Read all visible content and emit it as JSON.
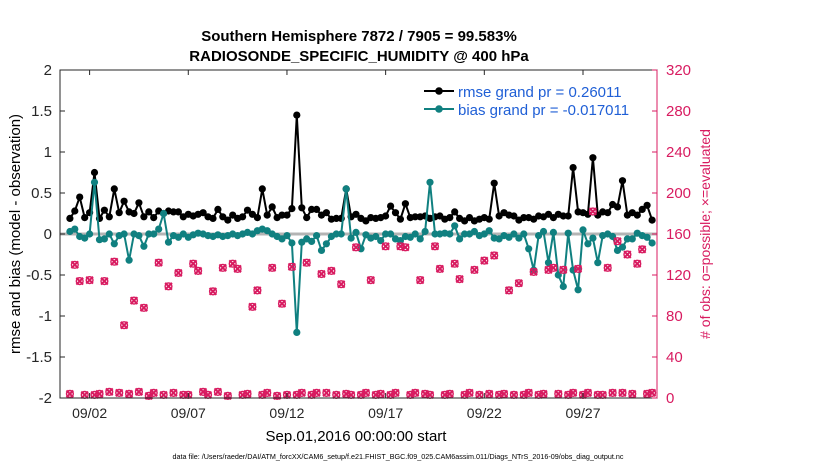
{
  "chart_data": {
    "type": "line",
    "title": "Southern Hemisphere 7872 / 7905 = 99.583%",
    "subtitle": "RADIOSONDE_SPECIFIC_HUMIDITY @ 400 hPa",
    "xlabel": "Sep.01,2016 00:00:00 start",
    "ylabel_left": "rmse and bias (model - observation)",
    "ylabel_right": "# of obs: o=possible; ×=evaluated",
    "footnote": "data file: /Users/raeder/DAI/ATM_forcXX/CAM6_setup/f.e21.FHIST_BGC.f09_025.CAM6assim.011/Diags_NTrS_2016-09/obs_diag_output.nc",
    "xlim": [
      0.5,
      30.75
    ],
    "ylim_left": [
      -2,
      2
    ],
    "ylim_right": [
      0,
      320
    ],
    "x_ticks": [
      2,
      7,
      12,
      17,
      22,
      27
    ],
    "x_tick_labels": [
      "09/02",
      "09/07",
      "09/12",
      "09/17",
      "09/22",
      "09/27"
    ],
    "y_left_ticks": [
      -2,
      -1.5,
      -1,
      -0.5,
      0,
      0.5,
      1,
      1.5,
      2
    ],
    "y_left_tick_labels": [
      "-2",
      "-1.5",
      "-1",
      "-0.5",
      "0",
      "0.5",
      "1",
      "1.5",
      "2"
    ],
    "y_right_ticks": [
      0,
      40,
      80,
      120,
      160,
      200,
      240,
      280,
      320
    ],
    "y_right_tick_labels": [
      "0",
      "40",
      "80",
      "120",
      "160",
      "200",
      "240",
      "280",
      "320"
    ],
    "colors": {
      "rmse": "#000000",
      "bias": "#108080",
      "obs": "#d81b60",
      "zero_line": "#b4b4b4",
      "legend_text": "#1f5fd6"
    },
    "legend": {
      "position": "top-right",
      "rmse_label": "rmse grand pr = 0.26011",
      "bias_label": "bias grand pr = -0.017011"
    },
    "x": [
      1.0,
      1.25,
      1.5,
      1.75,
      2.0,
      2.25,
      2.5,
      2.75,
      3.0,
      3.25,
      3.5,
      3.75,
      4.0,
      4.25,
      4.5,
      4.75,
      5.0,
      5.25,
      5.5,
      5.75,
      6.0,
      6.25,
      6.5,
      6.75,
      7.0,
      7.25,
      7.5,
      7.75,
      8.0,
      8.25,
      8.5,
      8.75,
      9.0,
      9.25,
      9.5,
      9.75,
      10.0,
      10.25,
      10.5,
      10.75,
      11.0,
      11.25,
      11.5,
      11.75,
      12.0,
      12.25,
      12.5,
      12.75,
      13.0,
      13.25,
      13.5,
      13.75,
      14.0,
      14.25,
      14.5,
      14.75,
      15.0,
      15.25,
      15.5,
      15.75,
      16.0,
      16.25,
      16.5,
      16.75,
      17.0,
      17.25,
      17.5,
      17.75,
      18.0,
      18.25,
      18.5,
      18.75,
      19.0,
      19.25,
      19.5,
      19.75,
      20.0,
      20.25,
      20.5,
      20.75,
      21.0,
      21.25,
      21.5,
      21.75,
      22.0,
      22.25,
      22.5,
      22.75,
      23.0,
      23.25,
      23.5,
      23.75,
      24.0,
      24.25,
      24.5,
      24.75,
      25.0,
      25.25,
      25.5,
      25.75,
      26.0,
      26.25,
      26.5,
      26.75,
      27.0,
      27.25,
      27.5,
      27.75,
      28.0,
      28.25,
      28.5,
      28.75,
      29.0,
      29.25,
      29.5,
      29.75,
      30.0,
      30.25,
      30.5
    ],
    "series": [
      {
        "name": "rmse",
        "values": [
          0.19,
          0.28,
          0.45,
          0.2,
          0.26,
          0.75,
          0.19,
          0.29,
          0.21,
          0.55,
          0.26,
          0.4,
          0.27,
          0.25,
          0.38,
          0.21,
          0.27,
          0.2,
          0.28,
          0.25,
          0.28,
          0.27,
          0.27,
          0.21,
          0.24,
          0.22,
          0.24,
          0.26,
          0.21,
          0.19,
          0.3,
          0.21,
          0.17,
          0.23,
          0.19,
          0.21,
          0.29,
          0.24,
          0.2,
          0.55,
          0.23,
          0.33,
          0.2,
          0.23,
          0.23,
          0.31,
          1.45,
          0.32,
          0.2,
          0.3,
          0.3,
          0.23,
          0.26,
          0.18,
          0.19,
          0.19,
          0.55,
          0.21,
          0.24,
          0.19,
          0.16,
          0.2,
          0.19,
          0.2,
          0.22,
          0.34,
          0.26,
          0.18,
          0.37,
          0.2,
          0.21,
          0.21,
          0.22,
          0.19,
          0.21,
          0.22,
          0.18,
          0.2,
          0.27,
          0.19,
          0.16,
          0.2,
          0.16,
          0.18,
          0.2,
          0.18,
          0.62,
          0.22,
          0.26,
          0.23,
          0.22,
          0.17,
          0.2,
          0.2,
          0.18,
          0.22,
          0.21,
          0.24,
          0.2,
          0.24,
          0.22,
          0.22,
          0.81,
          0.27,
          0.26,
          0.24,
          0.93,
          0.23,
          0.27,
          0.26,
          0.36,
          0.33,
          0.65,
          0.23,
          0.26,
          0.23,
          0.3,
          0.35,
          0.17
        ]
      },
      {
        "name": "bias",
        "values": [
          0.03,
          0.06,
          -0.03,
          -0.05,
          0.0,
          0.63,
          -0.07,
          -0.06,
          0.0,
          -0.12,
          -0.02,
          0.0,
          -0.32,
          0.0,
          -0.02,
          -0.15,
          0.0,
          0.0,
          0.06,
          0.25,
          -0.1,
          -0.02,
          -0.04,
          0.0,
          -0.04,
          -0.01,
          0.01,
          0.0,
          -0.02,
          -0.03,
          -0.01,
          -0.03,
          -0.02,
          0.0,
          -0.02,
          0.0,
          0.02,
          0.0,
          0.04,
          0.06,
          0.04,
          0.0,
          -0.03,
          -0.06,
          -0.02,
          -0.11,
          -1.2,
          -0.1,
          -0.06,
          -0.09,
          -0.02,
          -0.2,
          -0.12,
          -0.03,
          0.0,
          0.0,
          0.55,
          -0.05,
          0.02,
          -0.18,
          -0.01,
          -0.05,
          -0.03,
          -0.08,
          0.0,
          0.0,
          -0.06,
          -0.08,
          -0.03,
          -0.04,
          0.0,
          -0.06,
          0.03,
          0.63,
          0.0,
          0.0,
          0.01,
          0.0,
          0.1,
          -0.06,
          0.0,
          0.0,
          0.03,
          -0.02,
          0.0,
          0.04,
          -0.05,
          -0.06,
          -0.02,
          -0.04,
          0.0,
          -0.05,
          0.0,
          -0.18,
          -0.44,
          -0.02,
          0.03,
          -0.35,
          0.02,
          -0.5,
          -0.64,
          0.01,
          -0.44,
          -0.68,
          0.05,
          -0.12,
          -0.05,
          -0.35,
          -0.02,
          0.0,
          -0.03,
          -0.2,
          -0.16,
          -0.06,
          -0.06,
          0.01,
          -0.02,
          -0.04,
          -0.11
        ]
      },
      {
        "name": "obs_possible",
        "axis": "right",
        "values": [
          4,
          130,
          114,
          3,
          115,
          3,
          4,
          114,
          6,
          133,
          5,
          71,
          4,
          95,
          6,
          88,
          2,
          5,
          132,
          3,
          109,
          5,
          122,
          3,
          3,
          131,
          124,
          6,
          3,
          104,
          6,
          127,
          2,
          131,
          126,
          3,
          4,
          89,
          105,
          3,
          5,
          127,
          2,
          92,
          3,
          128,
          3,
          5,
          132,
          3,
          5,
          121,
          5,
          124,
          3,
          111,
          4,
          3,
          147,
          3,
          5,
          115,
          3,
          4,
          148,
          3,
          5,
          148,
          147,
          3,
          5,
          115,
          4,
          3,
          148,
          126,
          3,
          4,
          131,
          116,
          3,
          5,
          125,
          3,
          134,
          4,
          139,
          3,
          4,
          105,
          3,
          112,
          3,
          5,
          123,
          3,
          4,
          125,
          127,
          4,
          125,
          3,
          5,
          126,
          3,
          5,
          182,
          3,
          3,
          127,
          5,
          153,
          5,
          140,
          4,
          131,
          145,
          4,
          5
        ]
      },
      {
        "name": "obs_evaluated",
        "axis": "right",
        "values": [
          4,
          130,
          114,
          3,
          115,
          3,
          4,
          114,
          6,
          133,
          5,
          71,
          4,
          95,
          6,
          88,
          2,
          5,
          132,
          3,
          109,
          5,
          122,
          3,
          3,
          131,
          124,
          6,
          3,
          104,
          6,
          127,
          2,
          131,
          126,
          3,
          4,
          89,
          105,
          3,
          5,
          127,
          2,
          92,
          3,
          128,
          3,
          5,
          132,
          3,
          5,
          121,
          5,
          124,
          3,
          111,
          4,
          3,
          147,
          3,
          5,
          115,
          3,
          4,
          148,
          3,
          5,
          148,
          147,
          3,
          5,
          115,
          4,
          3,
          148,
          126,
          3,
          4,
          131,
          116,
          3,
          5,
          125,
          3,
          134,
          4,
          139,
          3,
          4,
          105,
          3,
          112,
          3,
          5,
          123,
          3,
          4,
          125,
          127,
          4,
          125,
          3,
          5,
          126,
          3,
          5,
          182,
          3,
          3,
          127,
          5,
          153,
          5,
          140,
          4,
          131,
          145,
          4,
          5
        ]
      }
    ]
  }
}
